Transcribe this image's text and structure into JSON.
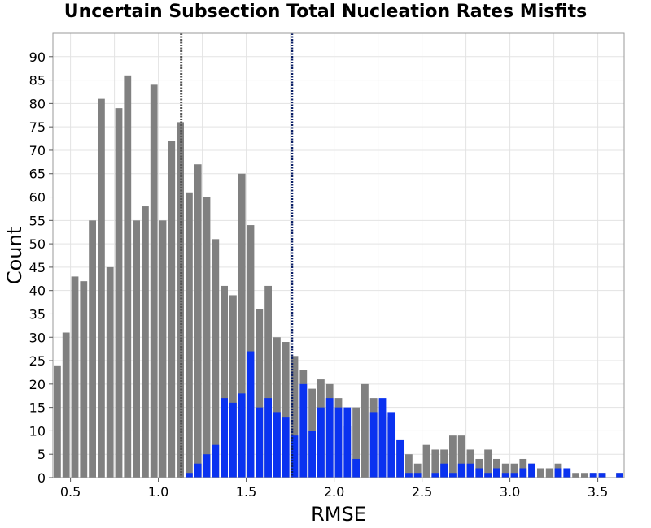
{
  "chart_data": {
    "type": "bar",
    "title": "Uncertain Subsection Total Nucleation Rates Misfits",
    "xlabel": "RMSE",
    "ylabel": "Count",
    "xlim": [
      0.4,
      3.65
    ],
    "ylim": [
      0,
      95
    ],
    "bin_width": 0.05,
    "x_ticks": [
      "0.5",
      "1.0",
      "1.5",
      "2.0",
      "2.5",
      "3.0",
      "3.5"
    ],
    "y_ticks": [
      "0",
      "5",
      "10",
      "15",
      "20",
      "25",
      "30",
      "35",
      "40",
      "45",
      "50",
      "55",
      "60",
      "65",
      "70",
      "75",
      "80",
      "85",
      "90"
    ],
    "grid": true,
    "colors": {
      "all": "#808080",
      "subset": "#0a32f0",
      "line_all": "#555555",
      "line_subset": "#0b1f66",
      "grid": "#e3e3e3"
    },
    "bin_starts": [
      0.4,
      0.45,
      0.5,
      0.55,
      0.6,
      0.65,
      0.7,
      0.75,
      0.8,
      0.85,
      0.9,
      0.95,
      1.0,
      1.05,
      1.1,
      1.15,
      1.2,
      1.25,
      1.3,
      1.35,
      1.4,
      1.45,
      1.5,
      1.55,
      1.6,
      1.65,
      1.7,
      1.75,
      1.8,
      1.85,
      1.9,
      1.95,
      2.0,
      2.05,
      2.1,
      2.15,
      2.2,
      2.25,
      2.3,
      2.35,
      2.4,
      2.45,
      2.5,
      2.55,
      2.6,
      2.65,
      2.7,
      2.75,
      2.8,
      2.85,
      2.9,
      2.95,
      3.0,
      3.05,
      3.1,
      3.15,
      3.2,
      3.25,
      3.3,
      3.35,
      3.4,
      3.45,
      3.5,
      3.55,
      3.6
    ],
    "series": [
      {
        "values": [
          24,
          31,
          43,
          42,
          55,
          81,
          45,
          79,
          86,
          55,
          58,
          84,
          55,
          72,
          76,
          61,
          67,
          60,
          51,
          41,
          39,
          65,
          54,
          36,
          41,
          30,
          29,
          26,
          23,
          19,
          21,
          20,
          17,
          11,
          15,
          20,
          17,
          14,
          13,
          8,
          5,
          3,
          7,
          6,
          6,
          9,
          9,
          6,
          4,
          6,
          4,
          3,
          3,
          4,
          3,
          2,
          2,
          3,
          1,
          1,
          1,
          1,
          1,
          0,
          1
        ]
      },
      {
        "values": [
          0,
          0,
          0,
          0,
          0,
          0,
          0,
          0,
          0,
          0,
          0,
          0,
          0,
          0,
          0,
          1,
          3,
          5,
          7,
          17,
          16,
          18,
          27,
          15,
          17,
          14,
          13,
          9,
          20,
          10,
          15,
          17,
          15,
          15,
          4,
          0,
          14,
          17,
          14,
          8,
          1,
          1,
          0,
          1,
          3,
          1,
          3,
          3,
          2,
          1,
          2,
          1,
          1,
          2,
          3,
          0,
          0,
          2,
          2,
          0,
          0,
          1,
          1,
          0,
          1
        ]
      }
    ],
    "vlines": [
      1.13,
      1.76
    ]
  }
}
